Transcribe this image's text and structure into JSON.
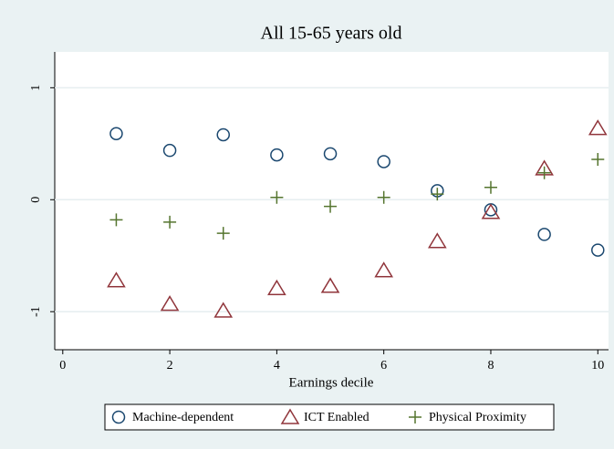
{
  "chart_data": {
    "type": "scatter",
    "title": "All 15-65 years old",
    "xlabel": "Earnings decile",
    "x": [
      1,
      2,
      3,
      4,
      5,
      6,
      7,
      8,
      9,
      10
    ],
    "series": [
      {
        "name": "Machine-dependent",
        "color": "#1a476f",
        "marker": "circle",
        "values": [
          0.59,
          0.44,
          0.58,
          0.4,
          0.41,
          0.34,
          0.08,
          -0.09,
          -0.31,
          -0.45
        ]
      },
      {
        "name": "ICT Enabled",
        "color": "#90353b",
        "marker": "triangle",
        "values": [
          -0.72,
          -0.93,
          -0.99,
          -0.79,
          -0.77,
          -0.63,
          -0.37,
          -0.11,
          0.28,
          0.64
        ]
      },
      {
        "name": "Physical Proximity",
        "color": "#55752f",
        "marker": "plus",
        "values": [
          -0.18,
          -0.2,
          -0.3,
          0.02,
          -0.06,
          0.02,
          0.05,
          0.11,
          0.24,
          0.36
        ]
      }
    ],
    "xlim": [
      -0.15,
      10.2
    ],
    "xticks": [
      0,
      2,
      4,
      6,
      8,
      10
    ],
    "ylim": [
      -1.34,
      1.32
    ],
    "yticks": [
      -1,
      0,
      1
    ],
    "grid": true
  }
}
